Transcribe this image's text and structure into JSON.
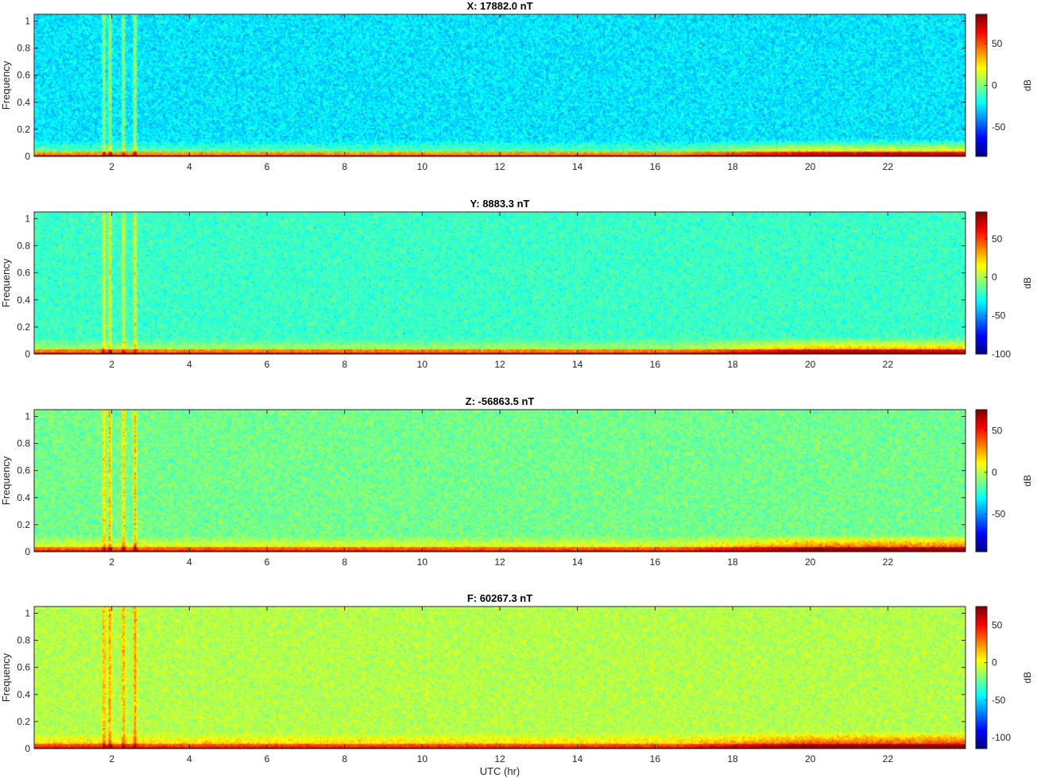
{
  "figure": {
    "xlabel": "UTC (hr)",
    "ylabel": "Frequency",
    "xticks": [
      2,
      4,
      6,
      8,
      10,
      12,
      14,
      16,
      18,
      20,
      22
    ],
    "yticks": [
      0,
      0.2,
      0.4,
      0.6,
      0.8,
      1
    ],
    "colormap": "jet",
    "colorbar_label": "dB",
    "colors": {
      "jet_low": "#00008f",
      "jet_cyan": "#00ffff",
      "jet_yellow": "#ffff00",
      "jet_high": "#800000",
      "axis": "#262626"
    }
  },
  "chart_data": [
    {
      "type": "heatmap",
      "title": "X: 17882.0 nT",
      "xlabel": "",
      "ylabel": "Frequency",
      "xlim": [
        0,
        24
      ],
      "ylim": [
        0,
        1.05
      ],
      "clim": [
        -85,
        85
      ],
      "colorbar_ticks": [
        50,
        0,
        -50
      ],
      "colorbar_label": "dB",
      "background_level_db": -25,
      "dc_band_level_db": 75,
      "event_columns_hr": [
        1.8,
        1.95,
        2.3,
        2.6
      ],
      "active_interval_hr": [
        19.5,
        24
      ]
    },
    {
      "type": "heatmap",
      "title": "Y: 8883.3 nT",
      "xlabel": "",
      "ylabel": "Frequency",
      "xlim": [
        0,
        24
      ],
      "ylim": [
        0,
        1.05
      ],
      "clim": [
        -100,
        85
      ],
      "colorbar_ticks": [
        50,
        0,
        -50,
        -100
      ],
      "colorbar_label": "dB",
      "background_level_db": -20,
      "dc_band_level_db": 75,
      "event_columns_hr": [
        1.8,
        1.95,
        2.3,
        2.6
      ],
      "active_interval_hr": [
        19.5,
        24
      ]
    },
    {
      "type": "heatmap",
      "title": "Z: -56863.5 nT",
      "xlabel": "",
      "ylabel": "Frequency",
      "xlim": [
        0,
        24
      ],
      "ylim": [
        0,
        1.05
      ],
      "clim": [
        -95,
        75
      ],
      "colorbar_ticks": [
        50,
        0,
        -50
      ],
      "colorbar_label": "dB",
      "background_level_db": -12,
      "dc_band_level_db": 65,
      "event_columns_hr": [
        1.8,
        1.95,
        2.3,
        2.6
      ],
      "active_interval_hr": [
        19.5,
        24
      ]
    },
    {
      "type": "heatmap",
      "title": "F: 60267.3 nT",
      "xlabel": "UTC (hr)",
      "ylabel": "Frequency",
      "xlim": [
        0,
        24
      ],
      "ylim": [
        0,
        1.05
      ],
      "clim": [
        -115,
        75
      ],
      "colorbar_ticks": [
        50,
        0,
        -50,
        -100
      ],
      "colorbar_label": "dB",
      "background_level_db": -10,
      "dc_band_level_db": 65,
      "event_columns_hr": [
        1.8,
        1.95,
        2.3,
        2.6
      ],
      "active_interval_hr": [
        19.5,
        24
      ]
    }
  ]
}
